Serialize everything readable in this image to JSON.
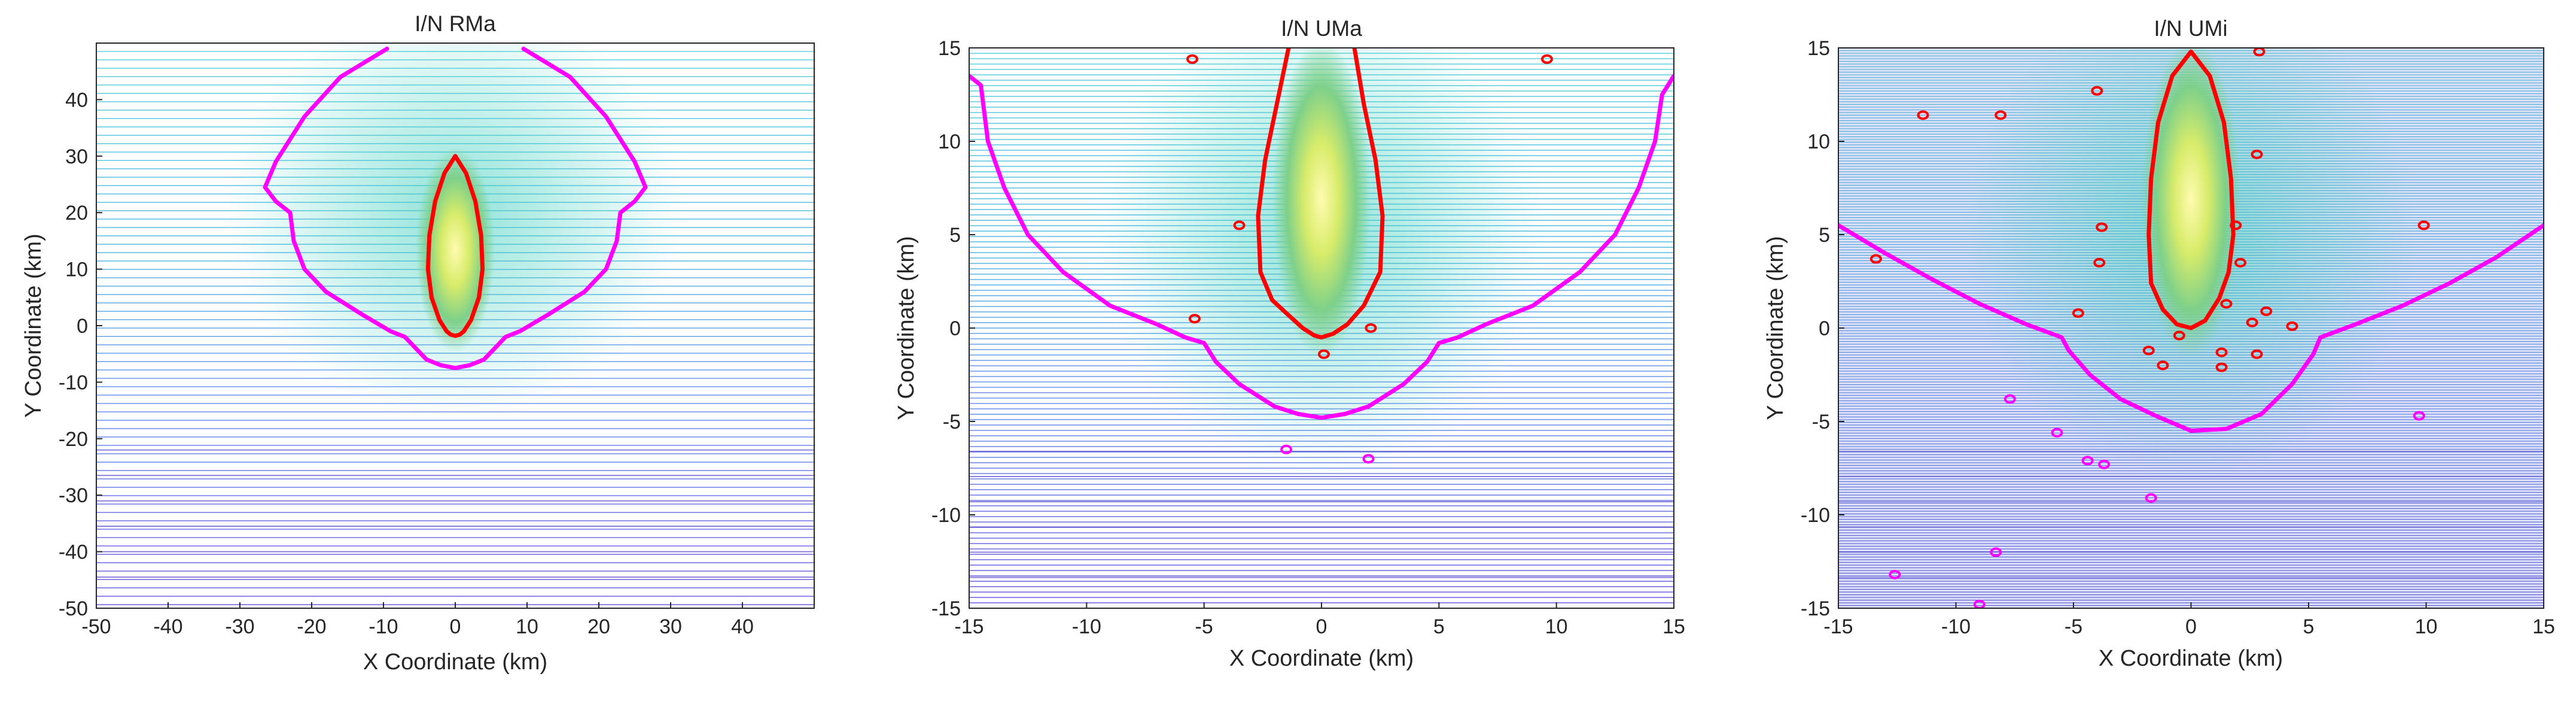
{
  "chart_data": [
    {
      "type": "heatmap",
      "title": "I/N RMa",
      "xlabel": "X Coordinate (km)",
      "ylabel": "Y Coordinate (km)",
      "xlim": [
        -50,
        50
      ],
      "ylim": [
        -50,
        50
      ],
      "xticks": [
        -50,
        -40,
        -30,
        -20,
        -10,
        0,
        10,
        20,
        30,
        40
      ],
      "yticks": [
        -50,
        -40,
        -30,
        -20,
        -10,
        0,
        10,
        20,
        30,
        40
      ],
      "grid_density": "coarse",
      "colormap": "parula",
      "contours": [
        {
          "color": "#ff00ff",
          "points": [
            [
              -9.5,
              49
            ],
            [
              -16,
              44
            ],
            [
              -21,
              37
            ],
            [
              -25,
              29
            ],
            [
              -26.5,
              24.5
            ],
            [
              -25,
              22
            ],
            [
              -23,
              20
            ],
            [
              -22.5,
              15
            ],
            [
              -21,
              10
            ],
            [
              -18,
              6
            ],
            [
              -13,
              2
            ],
            [
              -9,
              -1
            ],
            [
              -7,
              -2
            ],
            [
              -5.5,
              -4
            ],
            [
              -4,
              -6
            ],
            [
              -2,
              -7
            ],
            [
              0,
              -7.5
            ],
            [
              2,
              -7
            ],
            [
              4,
              -6
            ],
            [
              5.5,
              -4
            ],
            [
              7,
              -2
            ],
            [
              9,
              -1
            ],
            [
              13,
              2
            ],
            [
              18,
              6
            ],
            [
              21,
              10
            ],
            [
              22.5,
              15
            ],
            [
              23,
              20
            ],
            [
              25,
              22
            ],
            [
              26.5,
              24.5
            ],
            [
              25,
              29
            ],
            [
              21,
              37
            ],
            [
              16,
              44
            ],
            [
              9.5,
              49
            ]
          ]
        },
        {
          "color": "#ff0000",
          "points": [
            [
              0,
              30
            ],
            [
              1.5,
              27
            ],
            [
              2.8,
              22
            ],
            [
              3.6,
              16
            ],
            [
              3.8,
              10
            ],
            [
              3.3,
              5
            ],
            [
              2.2,
              1
            ],
            [
              1.2,
              -1
            ],
            [
              0.6,
              -1.6
            ],
            [
              0,
              -1.8
            ],
            [
              -0.6,
              -1.6
            ],
            [
              -1.2,
              -1
            ],
            [
              -2.2,
              1
            ],
            [
              -3.3,
              5
            ],
            [
              -3.8,
              10
            ],
            [
              -3.6,
              16
            ],
            [
              -2.8,
              22
            ],
            [
              -1.5,
              27
            ],
            [
              0,
              30
            ]
          ]
        }
      ],
      "markers": []
    },
    {
      "type": "heatmap",
      "title": "I/N UMa",
      "xlabel": "X Coordinate (km)",
      "ylabel": "Y Coordinate (km)",
      "xlim": [
        -15,
        15
      ],
      "ylim": [
        -15,
        15
      ],
      "xticks": [
        -15,
        -10,
        -5,
        0,
        5,
        10,
        15
      ],
      "yticks": [
        -15,
        -10,
        -5,
        0,
        5,
        10,
        15
      ],
      "grid_density": "medium",
      "colormap": "parula",
      "contours": [
        {
          "color": "#ff00ff",
          "points": [
            [
              -15,
              13.5
            ],
            [
              -14.5,
              13
            ],
            [
              -14.2,
              10
            ],
            [
              -13.5,
              7.5
            ],
            [
              -12.5,
              5
            ],
            [
              -11,
              3
            ],
            [
              -9,
              1.2
            ],
            [
              -7,
              0.2
            ],
            [
              -5.8,
              -0.5
            ],
            [
              -5,
              -0.8
            ],
            [
              -4.5,
              -1.8
            ],
            [
              -3.5,
              -3
            ],
            [
              -2,
              -4.2
            ],
            [
              -1,
              -4.6
            ],
            [
              0,
              -4.8
            ],
            [
              1,
              -4.6
            ],
            [
              2,
              -4.2
            ],
            [
              3.5,
              -3
            ],
            [
              4.5,
              -1.8
            ],
            [
              5,
              -0.8
            ],
            [
              5.8,
              -0.5
            ],
            [
              7,
              0.2
            ],
            [
              9,
              1.2
            ],
            [
              11,
              3
            ],
            [
              12.5,
              5
            ],
            [
              13.5,
              7.5
            ],
            [
              14.2,
              10
            ],
            [
              14.5,
              12.5
            ],
            [
              15,
              13.5
            ]
          ]
        },
        {
          "color": "#ff0000",
          "points": [
            [
              -1.4,
              15
            ],
            [
              -1.9,
              12
            ],
            [
              -2.4,
              9
            ],
            [
              -2.7,
              6
            ],
            [
              -2.6,
              3
            ],
            [
              -2.1,
              1.5
            ],
            [
              -1.5,
              0.8
            ],
            [
              -0.8,
              0
            ],
            [
              -0.3,
              -0.4
            ],
            [
              0,
              -0.5
            ],
            [
              0.5,
              -0.3
            ],
            [
              1.1,
              0.2
            ],
            [
              1.8,
              1.2
            ],
            [
              2.5,
              3
            ],
            [
              2.6,
              6
            ],
            [
              2.3,
              9
            ],
            [
              1.8,
              12
            ],
            [
              1.4,
              15
            ]
          ]
        }
      ],
      "markers": [
        {
          "color": "#ff0000",
          "x": -5.5,
          "y": 14.4
        },
        {
          "color": "#ff0000",
          "x": 9.6,
          "y": 14.4
        },
        {
          "color": "#ff0000",
          "x": -3.5,
          "y": 5.5
        },
        {
          "color": "#ff0000",
          "x": -5.4,
          "y": 0.5
        },
        {
          "color": "#ff0000",
          "x": 2.1,
          "y": 0
        },
        {
          "color": "#ff0000",
          "x": 0.1,
          "y": -1.4
        },
        {
          "color": "#ff00ff",
          "x": -1.5,
          "y": -6.5
        },
        {
          "color": "#ff00ff",
          "x": 2,
          "y": -7
        }
      ]
    },
    {
      "type": "heatmap",
      "title": "I/N UMi",
      "xlabel": "X Coordinate (km)",
      "ylabel": "Y Coordinate (km)",
      "xlim": [
        -15,
        15
      ],
      "ylim": [
        -15,
        15
      ],
      "xticks": [
        -15,
        -10,
        -5,
        0,
        5,
        10,
        15
      ],
      "yticks": [
        -15,
        -10,
        -5,
        0,
        5,
        10,
        15
      ],
      "grid_density": "fine",
      "colormap": "parula",
      "contours": [
        {
          "color": "#ff00ff",
          "points": [
            [
              -15,
              5.5
            ],
            [
              -13,
              4
            ],
            [
              -11,
              2.6
            ],
            [
              -9,
              1.3
            ],
            [
              -7,
              0.2
            ],
            [
              -5.5,
              -0.5
            ],
            [
              -5.2,
              -1.2
            ],
            [
              -4.3,
              -2.5
            ],
            [
              -3,
              -3.8
            ],
            [
              -1.5,
              -4.7
            ],
            [
              0,
              -5.5
            ],
            [
              1.5,
              -5.4
            ],
            [
              3,
              -4.6
            ],
            [
              4.3,
              -3
            ],
            [
              5.2,
              -1.4
            ],
            [
              5.5,
              -0.5
            ],
            [
              7,
              0.2
            ],
            [
              9,
              1.2
            ],
            [
              11,
              2.4
            ],
            [
              13,
              3.8
            ],
            [
              15,
              5.5
            ]
          ]
        },
        {
          "color": "#ff0000",
          "points": [
            [
              0,
              14.8
            ],
            [
              0.8,
              13.5
            ],
            [
              1.4,
              11
            ],
            [
              1.7,
              8
            ],
            [
              1.8,
              5
            ],
            [
              1.6,
              3
            ],
            [
              1.2,
              1.6
            ],
            [
              0.6,
              0.4
            ],
            [
              0,
              0
            ],
            [
              -0.6,
              0.2
            ],
            [
              -1.2,
              1
            ],
            [
              -1.7,
              2.4
            ],
            [
              -1.8,
              5
            ],
            [
              -1.7,
              8
            ],
            [
              -1.4,
              11
            ],
            [
              -0.8,
              13.5
            ],
            [
              0,
              14.8
            ]
          ]
        }
      ],
      "markers": [
        {
          "color": "#ff0000",
          "x": -4,
          "y": 12.7
        },
        {
          "color": "#ff0000",
          "x": 2.9,
          "y": 14.8
        },
        {
          "color": "#ff0000",
          "x": -11.4,
          "y": 11.4
        },
        {
          "color": "#ff0000",
          "x": -8.1,
          "y": 11.4
        },
        {
          "color": "#ff0000",
          "x": 2.8,
          "y": 9.3
        },
        {
          "color": "#ff0000",
          "x": -3.8,
          "y": 5.4
        },
        {
          "color": "#ff0000",
          "x": 1.9,
          "y": 5.5
        },
        {
          "color": "#ff0000",
          "x": -3.9,
          "y": 3.5
        },
        {
          "color": "#ff0000",
          "x": 2.1,
          "y": 3.5
        },
        {
          "color": "#ff0000",
          "x": 9.9,
          "y": 5.5
        },
        {
          "color": "#ff0000",
          "x": -4.8,
          "y": 0.8
        },
        {
          "color": "#ff0000",
          "x": 3.2,
          "y": 0.9
        },
        {
          "color": "#ff0000",
          "x": 2.6,
          "y": 0.3
        },
        {
          "color": "#ff0000",
          "x": 4.3,
          "y": 0.1
        },
        {
          "color": "#ff0000",
          "x": 1.5,
          "y": 1.3
        },
        {
          "color": "#ff0000",
          "x": -0.5,
          "y": -0.4
        },
        {
          "color": "#ff0000",
          "x": -1.8,
          "y": -1.2
        },
        {
          "color": "#ff0000",
          "x": -1.2,
          "y": -2
        },
        {
          "color": "#ff0000",
          "x": 1.3,
          "y": -1.3
        },
        {
          "color": "#ff0000",
          "x": 1.3,
          "y": -2.1
        },
        {
          "color": "#ff0000",
          "x": 2.8,
          "y": -1.4
        },
        {
          "color": "#ff0000",
          "x": -13.4,
          "y": 3.7
        },
        {
          "color": "#ff00ff",
          "x": -7.7,
          "y": -3.8
        },
        {
          "color": "#ff00ff",
          "x": -5.7,
          "y": -5.6
        },
        {
          "color": "#ff00ff",
          "x": -4.4,
          "y": -7.1
        },
        {
          "color": "#ff00ff",
          "x": -3.7,
          "y": -7.3
        },
        {
          "color": "#ff00ff",
          "x": -1.7,
          "y": -9.1
        },
        {
          "color": "#ff00ff",
          "x": 9.7,
          "y": -4.7
        },
        {
          "color": "#ff00ff",
          "x": -8.3,
          "y": -12
        },
        {
          "color": "#ff00ff",
          "x": -12.6,
          "y": -13.2
        },
        {
          "color": "#ff00ff",
          "x": -9,
          "y": -14.8
        }
      ]
    }
  ]
}
